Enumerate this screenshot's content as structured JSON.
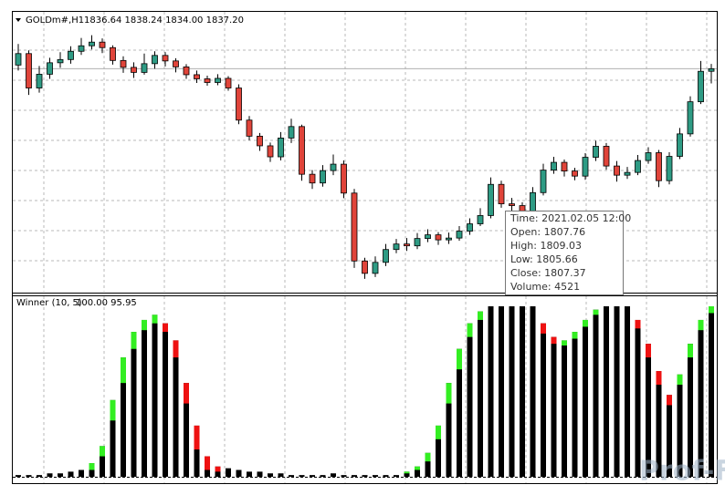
{
  "header": {
    "symbol": "GOLDm#,H1",
    "prices": "1836.64 1838.24 1834.00 1837.20"
  },
  "tooltip": [
    "Time: 2021.02.05 12:00",
    "Open: 1807.76",
    "High: 1809.03",
    "Low:  1805.66",
    "Close: 1807.37",
    "Volume: 4521"
  ],
  "watermark": "Prof-FX",
  "chart_data": [
    {
      "type": "candlestick",
      "up_color": "#2e9b84",
      "down_color": "#e0443a",
      "ylim": [
        1789,
        1849
      ],
      "current_price": 1837.2,
      "open": [
        1838.0,
        1840.5,
        1833.0,
        1836.0,
        1838.5,
        1839.2,
        1841.0,
        1842.2,
        1843.0,
        1841.8,
        1839.0,
        1837.5,
        1836.4,
        1838.3,
        1840.1,
        1838.9,
        1837.6,
        1835.9,
        1835.0,
        1834.2,
        1835.1,
        1833.0,
        1826.0,
        1822.5,
        1820.4,
        1818.0,
        1822.1,
        1824.6,
        1814.2,
        1812.3,
        1815.0,
        1816.4,
        1810.1,
        1795.3,
        1792.6,
        1795.0,
        1797.8,
        1799.0,
        1798.6,
        1800.2,
        1801.0,
        1799.9,
        1800.3,
        1801.8,
        1803.4,
        1805.2,
        1812.0,
        1807.76,
        1807.37,
        1806.0,
        1810.2,
        1815.1,
        1816.8,
        1814.9,
        1813.8,
        1817.9,
        1820.3,
        1816.0,
        1814.0,
        1814.6,
        1817.2,
        1818.9,
        1812.8,
        1818.1,
        1823.0,
        1830.0,
        1836.64
      ],
      "high": [
        1842.6,
        1841.2,
        1837.8,
        1839.6,
        1840.8,
        1842.1,
        1843.9,
        1844.5,
        1843.8,
        1842.3,
        1839.9,
        1838.6,
        1840.5,
        1841.0,
        1840.8,
        1839.5,
        1838.2,
        1836.8,
        1835.7,
        1836.0,
        1835.6,
        1833.8,
        1826.9,
        1823.2,
        1821.1,
        1823.4,
        1826.3,
        1825.0,
        1815.1,
        1816.2,
        1818.5,
        1817.2,
        1811.0,
        1796.0,
        1796.3,
        1799.0,
        1800.1,
        1800.3,
        1801.4,
        1802.2,
        1801.6,
        1801.5,
        1802.9,
        1804.6,
        1806.8,
        1813.5,
        1812.8,
        1809.03,
        1808.1,
        1811.4,
        1816.5,
        1818.0,
        1817.4,
        1815.6,
        1818.8,
        1821.5,
        1821.0,
        1817.1,
        1815.8,
        1818.4,
        1820.1,
        1819.5,
        1819.0,
        1824.3,
        1831.2,
        1838.9,
        1838.24
      ],
      "low": [
        1836.8,
        1831.5,
        1832.0,
        1835.0,
        1837.4,
        1838.3,
        1840.2,
        1841.4,
        1840.6,
        1838.1,
        1836.3,
        1835.2,
        1835.9,
        1837.2,
        1837.7,
        1836.4,
        1835.0,
        1834.1,
        1833.5,
        1833.6,
        1832.4,
        1825.1,
        1821.6,
        1819.3,
        1816.9,
        1817.2,
        1821.0,
        1812.8,
        1811.0,
        1811.5,
        1814.0,
        1809.0,
        1793.8,
        1791.4,
        1791.8,
        1794.2,
        1797.0,
        1797.5,
        1797.9,
        1799.4,
        1798.8,
        1799.0,
        1799.7,
        1801.0,
        1802.9,
        1804.6,
        1806.9,
        1805.66,
        1804.8,
        1805.1,
        1809.6,
        1814.3,
        1813.7,
        1812.9,
        1813.0,
        1817.1,
        1815.2,
        1812.6,
        1813.2,
        1814.0,
        1816.5,
        1811.4,
        1812.0,
        1817.5,
        1822.4,
        1829.5,
        1834.0
      ],
      "close": [
        1840.5,
        1833.0,
        1836.0,
        1838.5,
        1839.2,
        1841.0,
        1842.2,
        1843.0,
        1841.8,
        1839.0,
        1837.5,
        1836.4,
        1838.3,
        1840.1,
        1838.9,
        1837.6,
        1835.9,
        1835.0,
        1834.2,
        1835.1,
        1833.0,
        1826.0,
        1822.5,
        1820.4,
        1818.0,
        1822.1,
        1824.6,
        1814.2,
        1812.3,
        1815.0,
        1816.4,
        1810.1,
        1795.3,
        1792.6,
        1795.0,
        1797.8,
        1799.0,
        1798.6,
        1800.2,
        1801.0,
        1799.9,
        1800.3,
        1801.8,
        1803.4,
        1805.2,
        1812.0,
        1807.76,
        1807.37,
        1806.0,
        1810.2,
        1815.1,
        1816.8,
        1814.9,
        1813.8,
        1817.9,
        1820.3,
        1816.0,
        1814.0,
        1814.6,
        1817.2,
        1818.9,
        1812.8,
        1818.1,
        1823.0,
        1830.0,
        1836.64,
        1837.2
      ]
    },
    {
      "type": "indicator-bar",
      "title": "Winner (10, 5)",
      "levels": "100.00 95.95",
      "ylim": [
        0,
        100
      ],
      "color": "#000000",
      "up_color": "#33ee22",
      "down_color": "#ee1111",
      "values": [
        1,
        1,
        1,
        2,
        2,
        3,
        4,
        8,
        18,
        45,
        70,
        85,
        92,
        95,
        90,
        80,
        55,
        30,
        12,
        6,
        5,
        4,
        3,
        3,
        2,
        2,
        1,
        1,
        1,
        1,
        2,
        1,
        1,
        1,
        1,
        1,
        1,
        3,
        6,
        14,
        30,
        55,
        75,
        90,
        97,
        100,
        100,
        100,
        100,
        100,
        90,
        82,
        80,
        85,
        92,
        98,
        100,
        100,
        100,
        92,
        78,
        62,
        48,
        60,
        78,
        92,
        100
      ],
      "caps": [
        null,
        null,
        null,
        null,
        null,
        null,
        null,
        4,
        6,
        12,
        15,
        10,
        6,
        5,
        5,
        10,
        12,
        14,
        8,
        3,
        null,
        null,
        null,
        null,
        null,
        null,
        null,
        null,
        null,
        null,
        null,
        null,
        null,
        null,
        null,
        null,
        null,
        1,
        2,
        5,
        8,
        12,
        12,
        8,
        5,
        null,
        null,
        null,
        null,
        null,
        6,
        4,
        3,
        4,
        4,
        3,
        null,
        null,
        null,
        5,
        8,
        8,
        6,
        6,
        8,
        6,
        4
      ],
      "signals": [
        null,
        null,
        null,
        null,
        null,
        null,
        null,
        "up",
        "up",
        "up",
        "up",
        "up",
        "up",
        "up",
        "down",
        "down",
        "down",
        "down",
        "down",
        "down",
        null,
        null,
        null,
        null,
        null,
        null,
        null,
        null,
        null,
        null,
        null,
        null,
        null,
        null,
        null,
        null,
        null,
        "up",
        "up",
        "up",
        "up",
        "up",
        "up",
        "up",
        "up",
        null,
        null,
        null,
        null,
        null,
        "down",
        "down",
        "up",
        "up",
        "up",
        "up",
        null,
        null,
        null,
        "down",
        "down",
        "down",
        "down",
        "up",
        "up",
        "up",
        "up"
      ]
    }
  ]
}
